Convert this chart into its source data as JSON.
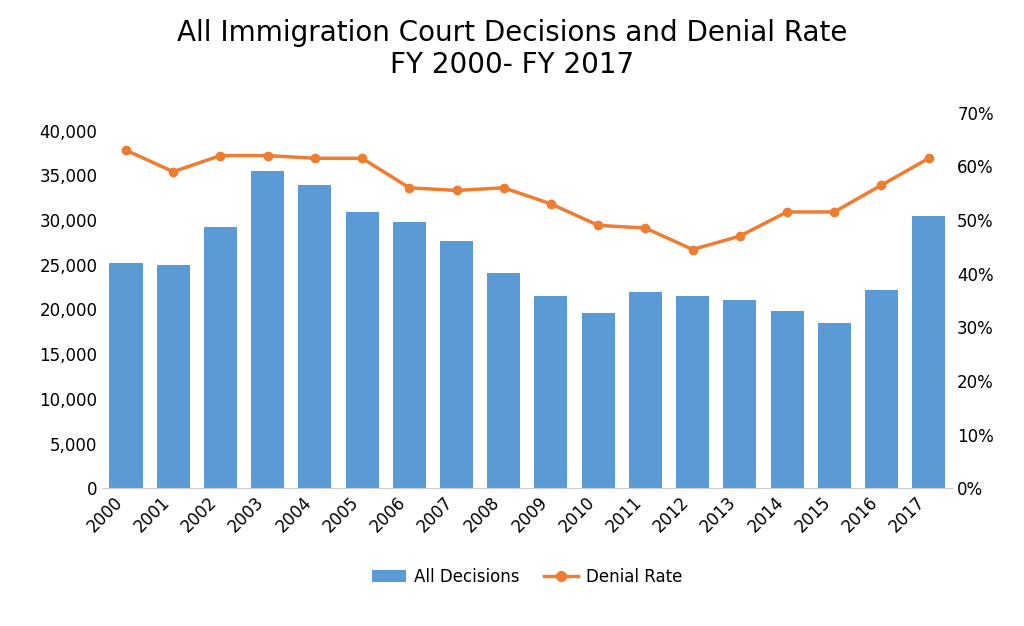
{
  "years": [
    2000,
    2001,
    2002,
    2003,
    2004,
    2005,
    2006,
    2007,
    2008,
    2009,
    2010,
    2011,
    2012,
    2013,
    2014,
    2015,
    2016,
    2017
  ],
  "all_decisions": [
    25200,
    25000,
    29200,
    35500,
    33900,
    30900,
    29800,
    27700,
    24100,
    21500,
    19600,
    22000,
    21500,
    21100,
    19800,
    18500,
    22200,
    30400
  ],
  "denial_rate": [
    0.63,
    0.59,
    0.62,
    0.62,
    0.615,
    0.615,
    0.56,
    0.555,
    0.56,
    0.53,
    0.49,
    0.485,
    0.445,
    0.47,
    0.515,
    0.515,
    0.565,
    0.615
  ],
  "title_line1": "All Immigration Court Decisions and Denial Rate",
  "title_line2": "FY 2000- FY 2017",
  "bar_color": "#5B9BD5",
  "line_color": "#ED7D31",
  "bar_label": "All Decisions",
  "line_label": "Denial Rate",
  "ylim_left": [
    0,
    42000
  ],
  "ylim_right": [
    0,
    0.7
  ],
  "yticks_left": [
    0,
    5000,
    10000,
    15000,
    20000,
    25000,
    30000,
    35000,
    40000
  ],
  "yticks_right": [
    0.0,
    0.1,
    0.2,
    0.3,
    0.4,
    0.5,
    0.6,
    0.7
  ],
  "background_color": "#FFFFFF",
  "title_fontsize": 20,
  "tick_fontsize": 12,
  "legend_fontsize": 12
}
